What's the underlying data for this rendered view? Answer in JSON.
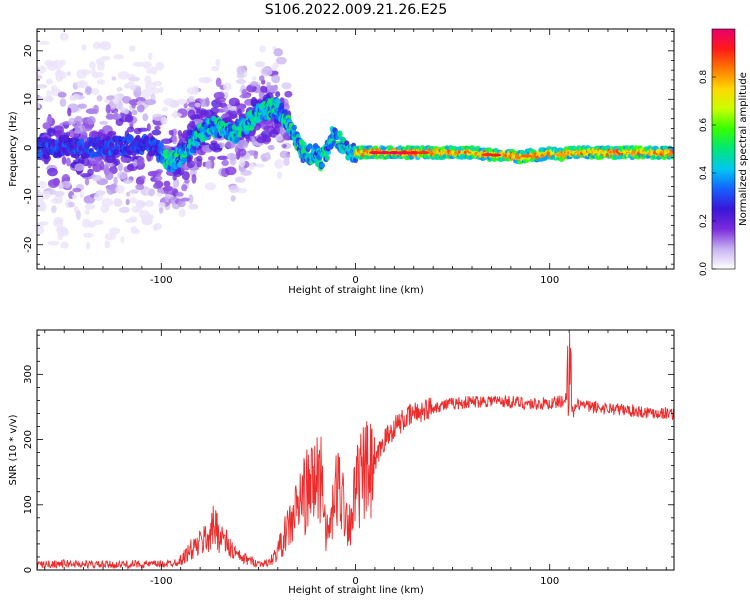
{
  "figure": {
    "title": "S106.2022.009.21.26.E25"
  },
  "colors": {
    "snr_line": "#ee2b2b",
    "colormap": [
      "#ffffff",
      "#c7b3f0",
      "#7a2bdc",
      "#3a16d8",
      "#1560ff",
      "#00c8f0",
      "#00e67a",
      "#33ff00",
      "#c8ff00",
      "#ffd800",
      "#ff7a00",
      "#ff1a1a",
      "#e6006e"
    ]
  },
  "chart_data": [
    {
      "type": "heatmap",
      "title": "S106.2022.009.21.26.E25",
      "xlabel": "Height of straight line (km)",
      "ylabel": "Frequency (Hz)",
      "xlim": [
        -164,
        164
      ],
      "ylim": [
        -25,
        24.5
      ],
      "xticks": [
        -100,
        0,
        100
      ],
      "yticks": [
        -20,
        -10,
        0,
        10,
        20
      ],
      "grid": false,
      "ridge": {
        "description": "dominant frequency track",
        "x": [
          -164,
          -140,
          -120,
          -105,
          -100,
          -96,
          -92,
          -88,
          -84,
          -80,
          -74,
          -68,
          -62,
          -56,
          -50,
          -45,
          -40,
          -36,
          -33,
          -30,
          -27,
          -24,
          -21,
          -18,
          -15,
          -12,
          -9,
          -6,
          -3,
          0,
          3,
          6,
          10,
          20,
          40,
          60,
          70,
          80,
          85,
          90,
          95,
          100,
          105,
          110,
          120,
          140,
          164
        ],
        "y": [
          0,
          0,
          0.5,
          0.5,
          -1,
          -3,
          -2.5,
          -1,
          1,
          3,
          4.5,
          4,
          3,
          5,
          7,
          8,
          8,
          6,
          4,
          1.5,
          -1,
          -1.5,
          -1,
          -2.5,
          -1,
          2.5,
          2,
          0,
          -0.5,
          -1,
          -1,
          -1,
          -1,
          -1,
          -1,
          -1,
          -1.5,
          -1.5,
          -2,
          -1.5,
          -1.5,
          -1,
          -1.5,
          -1,
          -1,
          -1,
          -1
        ]
      },
      "colorbar": {
        "label": "Normalized spectral amplitude",
        "range": [
          0,
          1
        ],
        "ticks": [
          "0.0",
          "0.2",
          "0.4",
          "0.6",
          "0.8"
        ]
      }
    },
    {
      "type": "line",
      "xlabel": "Height of straight line (km)",
      "ylabel": "SNR (10 * v/v)",
      "xlim": [
        -164,
        164
      ],
      "ylim": [
        0,
        368
      ],
      "xticks": [
        -100,
        0,
        100
      ],
      "yticks": [
        0,
        100,
        200,
        300
      ],
      "grid": false,
      "series": [
        {
          "x": [
            -164,
            -150,
            -130,
            -110,
            -100,
            -95,
            -90,
            -85,
            -80,
            -75,
            -72,
            -70,
            -65,
            -60,
            -55,
            -50,
            -45,
            -42,
            -40,
            -36,
            -32,
            -30,
            -28,
            -25,
            -22,
            -20,
            -17,
            -15,
            -12,
            -10,
            -8,
            -5,
            -3,
            0,
            3,
            6,
            8,
            10,
            12,
            15,
            18,
            20,
            25,
            30,
            40,
            50,
            60,
            70,
            80,
            90,
            100,
            105,
            108,
            110,
            112,
            115,
            120,
            130,
            140,
            150,
            164
          ],
          "y": [
            8,
            10,
            8,
            9,
            9,
            10,
            15,
            30,
            40,
            55,
            70,
            55,
            35,
            20,
            15,
            10,
            10,
            20,
            30,
            55,
            80,
            95,
            110,
            120,
            130,
            140,
            145,
            50,
            80,
            120,
            130,
            90,
            70,
            120,
            140,
            150,
            145,
            155,
            180,
            200,
            210,
            220,
            230,
            240,
            250,
            255,
            258,
            260,
            258,
            255,
            255,
            258,
            260,
            280,
            240,
            255,
            250,
            248,
            245,
            242,
            240
          ]
        }
      ]
    }
  ]
}
